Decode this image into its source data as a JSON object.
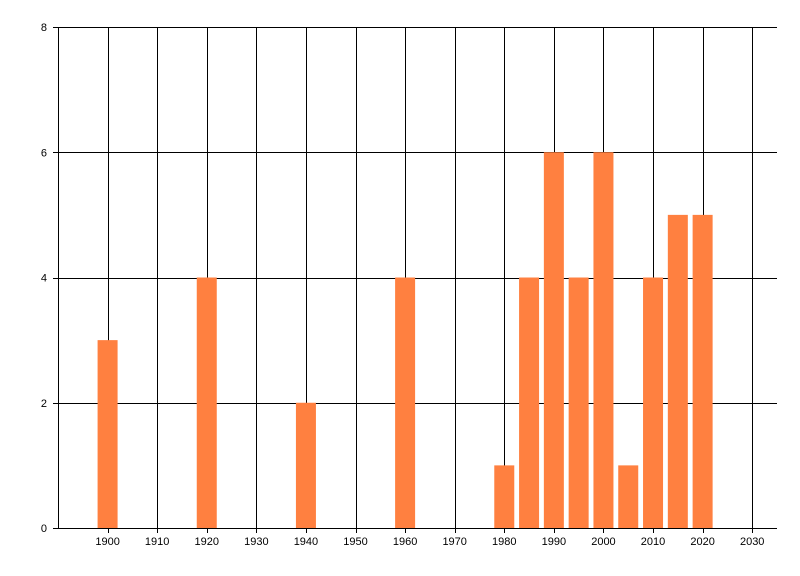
{
  "chart_data": {
    "type": "bar",
    "title": "",
    "xlabel": "",
    "ylabel": "",
    "x": [
      1900,
      1920,
      1940,
      1960,
      1980,
      1985,
      1990,
      1995,
      2000,
      2005,
      2010,
      2015,
      2020
    ],
    "values": [
      3,
      4,
      2,
      4,
      1,
      4,
      6,
      4,
      6,
      1,
      4,
      5,
      5
    ],
    "xlim": [
      1890,
      2035
    ],
    "ylim": [
      0,
      8
    ],
    "x_ticks": [
      1900,
      1910,
      1920,
      1930,
      1940,
      1950,
      1960,
      1970,
      1980,
      1990,
      2000,
      2010,
      2020,
      2030
    ],
    "y_ticks": [
      0,
      2,
      4,
      6,
      8
    ],
    "grid": true,
    "colors": {
      "bar": "#FF8040",
      "grid": "#000000",
      "background": "#FFFFFF"
    }
  }
}
